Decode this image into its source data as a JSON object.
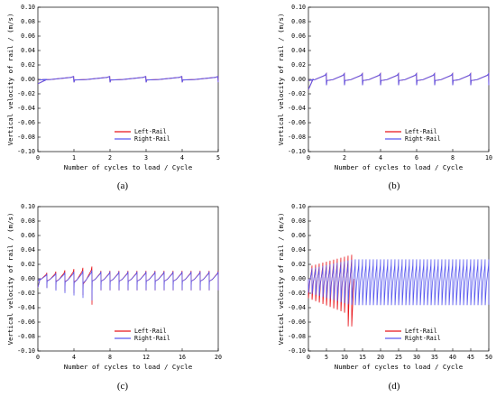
{
  "colors": {
    "left_rail": "#e8141a",
    "right_rail": "#5a5af0",
    "axis": "#000000"
  },
  "chart_data": [
    {
      "type": "line",
      "label": "(a)",
      "xlabel": "Number of cycles to load / Cycle",
      "ylabel": "Vertical velocity of rail / (m/s)",
      "xlim": [
        0,
        5
      ],
      "ylim": [
        -0.1,
        0.1
      ],
      "xticks": [
        0,
        1,
        2,
        3,
        4,
        5
      ],
      "xtick_labels": [
        "0",
        "1",
        "2",
        "3",
        "4",
        "5"
      ],
      "yticks": [
        0.1,
        0.08,
        0.06,
        0.04,
        0.02,
        0.0,
        -0.02,
        -0.04,
        -0.06,
        -0.08,
        -0.1
      ],
      "ytick_labels": [
        "0.10",
        "0.08",
        "0.06",
        "0.04",
        "0.02",
        "0.00",
        "-0.02",
        "-0.04",
        "-0.06",
        "-0.08",
        "-0.10"
      ],
      "legend_position": "lower-center",
      "series": [
        {
          "name": "Left-Rail",
          "color": "#e8141a",
          "cycles": 5,
          "peak": 0.004,
          "trough": -0.004,
          "start": -0.006
        },
        {
          "name": "Right-Rail",
          "color": "#5a5af0",
          "cycles": 5,
          "peak": 0.004,
          "trough": -0.004,
          "start": -0.006
        }
      ]
    },
    {
      "type": "line",
      "label": "(b)",
      "xlabel": "Number of cycles to load / Cycle",
      "ylabel": "Vertical velocity of rail / (m/s)",
      "xlim": [
        0,
        10
      ],
      "ylim": [
        -0.1,
        0.1
      ],
      "xticks": [
        0,
        2,
        4,
        6,
        8,
        10
      ],
      "xtick_labels": [
        "0",
        "2",
        "4",
        "6",
        "8",
        "10"
      ],
      "yticks": [
        0.1,
        0.08,
        0.06,
        0.04,
        0.02,
        0.0,
        -0.02,
        -0.04,
        -0.06,
        -0.08,
        -0.1
      ],
      "ytick_labels": [
        "0.10",
        "0.08",
        "0.06",
        "0.04",
        "0.02",
        "0.00",
        "-0.02",
        "-0.04",
        "-0.06",
        "-0.08",
        "-0.10"
      ],
      "legend_position": "lower-center",
      "series": [
        {
          "name": "Left-Rail",
          "color": "#e8141a",
          "cycles": 10,
          "peak": 0.008,
          "trough": -0.008,
          "start": -0.014
        },
        {
          "name": "Right-Rail",
          "color": "#5a5af0",
          "cycles": 10,
          "peak": 0.008,
          "trough": -0.008,
          "start": -0.014
        }
      ]
    },
    {
      "type": "line",
      "label": "(c)",
      "xlabel": "Number of cycles to load / Cycle",
      "ylabel": "Vertical velocity of rail / (m/s)",
      "xlim": [
        0,
        20
      ],
      "ylim": [
        -0.1,
        0.1
      ],
      "xticks": [
        0,
        4,
        8,
        12,
        16,
        20
      ],
      "xtick_labels": [
        "0",
        "4",
        "8",
        "12",
        "16",
        "20"
      ],
      "yticks": [
        0.1,
        0.08,
        0.06,
        0.04,
        0.02,
        0.0,
        -0.02,
        -0.04,
        -0.06,
        -0.08,
        -0.1
      ],
      "ytick_labels": [
        "0.10",
        "0.08",
        "0.06",
        "0.04",
        "0.02",
        "0.00",
        "-0.02",
        "-0.04",
        "-0.06",
        "-0.08",
        "-0.10"
      ],
      "legend_position": "lower-center",
      "series": [
        {
          "name": "Left-Rail",
          "color": "#e8141a",
          "cycles": 20,
          "peak": 0.017,
          "trough": -0.025,
          "min": -0.036,
          "start": -0.012,
          "growth_end": 6,
          "steady_peak": 0.011,
          "steady_trough": -0.016
        },
        {
          "name": "Right-Rail",
          "color": "#5a5af0",
          "cycles": 20,
          "peak": 0.013,
          "trough": -0.03,
          "min": -0.03,
          "start": -0.012,
          "growth_end": 6,
          "steady_peak": 0.011,
          "steady_trough": -0.016
        }
      ]
    },
    {
      "type": "line",
      "label": "(d)",
      "xlabel": "Number of cycles to load / Cycle",
      "ylabel": "Vertical velocity of rail / (m/s)",
      "xlim": [
        0,
        50
      ],
      "ylim": [
        -0.1,
        0.1
      ],
      "xticks": [
        0,
        5,
        10,
        15,
        20,
        25,
        30,
        35,
        40,
        45,
        50
      ],
      "xtick_labels": [
        "0",
        "5",
        "10",
        "15",
        "20",
        "25",
        "30",
        "35",
        "40",
        "45",
        "50"
      ],
      "yticks": [
        0.1,
        0.08,
        0.06,
        0.04,
        0.02,
        0.0,
        -0.02,
        -0.04,
        -0.06,
        -0.08,
        -0.1
      ],
      "ytick_labels": [
        "0.10",
        "0.08",
        "0.06",
        "0.04",
        "0.02",
        "0.00",
        "-0.02",
        "-0.04",
        "-0.06",
        "-0.08",
        "-0.10"
      ],
      "legend_position": "lower-center",
      "series": [
        {
          "name": "Left-Rail",
          "color": "#e8141a",
          "cycles": 12.5,
          "peak": 0.034,
          "trough": -0.05,
          "min": -0.066
        },
        {
          "name": "Right-Rail",
          "color": "#5a5af0",
          "cycles": 50,
          "peak": 0.027,
          "trough": -0.036,
          "growth_end": 12.5
        }
      ]
    }
  ]
}
